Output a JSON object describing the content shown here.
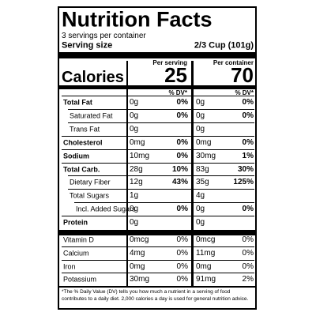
{
  "header": {
    "title": "Nutrition Facts",
    "servings": "3 servings per container",
    "serving_size_label": "Serving size",
    "serving_size": "2/3 Cup (101g)"
  },
  "columns": {
    "per_serving": "Per serving",
    "per_container": "Per container",
    "dv": "% DV*"
  },
  "calories": {
    "label": "Calories",
    "per_serving": "25",
    "per_container": "70"
  },
  "rows": [
    {
      "label": "Total Fat",
      "amount": "0g",
      "dv": "0%",
      "amount2": "0g",
      "dv2": "0%",
      "bold": true
    },
    {
      "label": "Saturated Fat",
      "amount": "0g",
      "dv": "0%",
      "amount2": "0g",
      "dv2": "0%",
      "indent": 1
    },
    {
      "label": "Trans Fat",
      "amount": "0g",
      "amount2": "0g",
      "indent": 1
    },
    {
      "label": "Cholesterol",
      "amount": "0mg",
      "dv": "0%",
      "amount2": "0mg",
      "dv2": "0%",
      "bold": true
    },
    {
      "label": "Sodium",
      "amount": "10mg",
      "dv": "0%",
      "amount2": "30mg",
      "dv2": "1%",
      "bold": true
    },
    {
      "label": "Total Carb.",
      "amount": "28g",
      "dv": "10%",
      "amount2": "83g",
      "dv2": "30%",
      "bold": true
    },
    {
      "label": "Dietary Fiber",
      "amount": "12g",
      "dv": "43%",
      "amount2": "35g",
      "dv2": "125%",
      "indent": 1
    },
    {
      "label": "Total Sugars",
      "amount": "1g",
      "amount2": "4g",
      "indent": 1
    },
    {
      "label": "Incl. Added Sugars",
      "amount": "0g",
      "dv": "0%",
      "amount2": "0g",
      "dv2": "0%",
      "indent": 2
    },
    {
      "label": "Protein",
      "amount": "0g",
      "amount2": "0g",
      "bold": true
    }
  ],
  "vitamins": [
    {
      "label": "Vitamin D",
      "amount": "0mcg",
      "dv": "0%",
      "amount2": "0mcg",
      "dv2": "0%"
    },
    {
      "label": "Calcium",
      "amount": "4mg",
      "dv": "0%",
      "amount2": "11mg",
      "dv2": "0%"
    },
    {
      "label": "Iron",
      "amount": "0mg",
      "dv": "0%",
      "amount2": "0mg",
      "dv2": "0%"
    },
    {
      "label": "Potassium",
      "amount": "30mg",
      "dv": "0%",
      "amount2": "91mg",
      "dv2": "2%"
    }
  ],
  "footnote": "*The % Daily Value (DV) tells you how much a nutrient in a serving of food contributes to a daily diet. 2,000 calories a day is used for general nutrition advice."
}
